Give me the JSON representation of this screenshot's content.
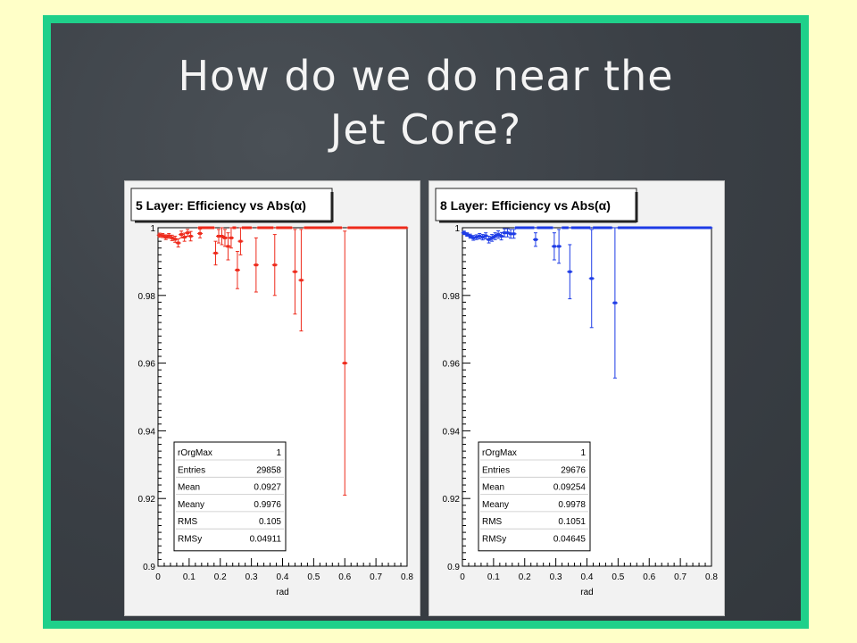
{
  "slide": {
    "title": "How do we do near the\nJet Core?"
  },
  "chart_data": [
    {
      "type": "scatter",
      "title": "5 Layer: Efficiency vs Abs(α)",
      "xlabel": "rad",
      "ylabel": "",
      "xlim": [
        0,
        0.8
      ],
      "ylim": [
        0.9,
        1.0
      ],
      "xticks": [
        "0",
        "0.1",
        "0.2",
        "0.3",
        "0.4",
        "0.5",
        "0.6",
        "0.7",
        "0.8"
      ],
      "yticks": [
        "0.9",
        "0.92",
        "0.94",
        "0.96",
        "0.98",
        "1"
      ],
      "color": "#ee2b1c",
      "series": [
        {
          "points": [
            {
              "x": 0.005,
              "y": 0.9978,
              "err": 0.0006
            },
            {
              "x": 0.015,
              "y": 0.9977,
              "err": 0.0006
            },
            {
              "x": 0.025,
              "y": 0.9972,
              "err": 0.0007
            },
            {
              "x": 0.035,
              "y": 0.9976,
              "err": 0.0007
            },
            {
              "x": 0.045,
              "y": 0.997,
              "err": 0.0008
            },
            {
              "x": 0.055,
              "y": 0.9966,
              "err": 0.0009
            },
            {
              "x": 0.065,
              "y": 0.9955,
              "err": 0.0012
            },
            {
              "x": 0.075,
              "y": 0.998,
              "err": 0.001
            },
            {
              "x": 0.085,
              "y": 0.9972,
              "err": 0.0012
            },
            {
              "x": 0.095,
              "y": 0.9985,
              "err": 0.001
            },
            {
              "x": 0.105,
              "y": 0.9975,
              "err": 0.0014
            },
            {
              "x": 0.135,
              "y": 0.9983,
              "err": 0.0013
            },
            {
              "x": 0.185,
              "y": 0.9925,
              "err": 0.0035
            },
            {
              "x": 0.195,
              "y": 0.9975,
              "err": 0.002
            },
            {
              "x": 0.205,
              "y": 0.9975,
              "err": 0.0025
            },
            {
              "x": 0.215,
              "y": 0.997,
              "err": 0.0025
            },
            {
              "x": 0.225,
              "y": 0.9945,
              "err": 0.004
            },
            {
              "x": 0.235,
              "y": 0.997,
              "err": 0.003
            },
            {
              "x": 0.255,
              "y": 0.9875,
              "err": 0.0055
            },
            {
              "x": 0.265,
              "y": 0.996,
              "err": 0.004
            },
            {
              "x": 0.315,
              "y": 0.989,
              "err": 0.008
            },
            {
              "x": 0.375,
              "y": 0.989,
              "err": 0.009
            },
            {
              "x": 0.44,
              "y": 0.987,
              "err": 0.0125
            },
            {
              "x": 0.46,
              "y": 0.9845,
              "err": 0.015
            },
            {
              "x": 0.6,
              "y": 0.96,
              "err": 0.039
            },
            {
              "x": 0.135,
              "y": 1.0,
              "err": 0
            },
            {
              "x": 0.145,
              "y": 1.0,
              "err": 0
            },
            {
              "x": 0.155,
              "y": 1.0,
              "err": 0
            },
            {
              "x": 0.165,
              "y": 1.0,
              "err": 0
            },
            {
              "x": 0.175,
              "y": 1.0,
              "err": 0
            },
            {
              "x": 0.245,
              "y": 1.0,
              "err": 0
            },
            {
              "x": 0.275,
              "y": 1.0,
              "err": 0
            },
            {
              "x": 0.285,
              "y": 1.0,
              "err": 0
            },
            {
              "x": 0.295,
              "y": 1.0,
              "err": 0
            },
            {
              "x": 0.325,
              "y": 1.0,
              "err": 0
            },
            {
              "x": 0.335,
              "y": 1.0,
              "err": 0
            },
            {
              "x": 0.345,
              "y": 1.0,
              "err": 0
            },
            {
              "x": 0.355,
              "y": 1.0,
              "err": 0
            },
            {
              "x": 0.365,
              "y": 1.0,
              "err": 0
            },
            {
              "x": 0.385,
              "y": 1.0,
              "err": 0
            },
            {
              "x": 0.395,
              "y": 1.0,
              "err": 0
            },
            {
              "x": 0.405,
              "y": 1.0,
              "err": 0
            },
            {
              "x": 0.415,
              "y": 1.0,
              "err": 0
            },
            {
              "x": 0.425,
              "y": 1.0,
              "err": 0
            },
            {
              "x": 0.475,
              "y": 1.0,
              "err": 0
            },
            {
              "x": 0.485,
              "y": 1.0,
              "err": 0
            },
            {
              "x": 0.495,
              "y": 1.0,
              "err": 0
            },
            {
              "x": 0.505,
              "y": 1.0,
              "err": 0
            },
            {
              "x": 0.515,
              "y": 1.0,
              "err": 0
            },
            {
              "x": 0.525,
              "y": 1.0,
              "err": 0
            },
            {
              "x": 0.535,
              "y": 1.0,
              "err": 0
            },
            {
              "x": 0.545,
              "y": 1.0,
              "err": 0
            },
            {
              "x": 0.555,
              "y": 1.0,
              "err": 0
            },
            {
              "x": 0.565,
              "y": 1.0,
              "err": 0
            },
            {
              "x": 0.575,
              "y": 1.0,
              "err": 0
            },
            {
              "x": 0.585,
              "y": 1.0,
              "err": 0
            },
            {
              "x": 0.615,
              "y": 1.0,
              "err": 0
            },
            {
              "x": 0.625,
              "y": 1.0,
              "err": 0
            },
            {
              "x": 0.635,
              "y": 1.0,
              "err": 0
            },
            {
              "x": 0.645,
              "y": 1.0,
              "err": 0
            },
            {
              "x": 0.655,
              "y": 1.0,
              "err": 0
            },
            {
              "x": 0.665,
              "y": 1.0,
              "err": 0
            },
            {
              "x": 0.675,
              "y": 1.0,
              "err": 0
            },
            {
              "x": 0.685,
              "y": 1.0,
              "err": 0
            },
            {
              "x": 0.695,
              "y": 1.0,
              "err": 0
            },
            {
              "x": 0.705,
              "y": 1.0,
              "err": 0
            },
            {
              "x": 0.715,
              "y": 1.0,
              "err": 0
            },
            {
              "x": 0.725,
              "y": 1.0,
              "err": 0
            },
            {
              "x": 0.735,
              "y": 1.0,
              "err": 0
            },
            {
              "x": 0.745,
              "y": 1.0,
              "err": 0
            },
            {
              "x": 0.755,
              "y": 1.0,
              "err": 0
            },
            {
              "x": 0.765,
              "y": 1.0,
              "err": 0
            },
            {
              "x": 0.775,
              "y": 1.0,
              "err": 0
            },
            {
              "x": 0.785,
              "y": 1.0,
              "err": 0
            },
            {
              "x": 0.795,
              "y": 1.0,
              "err": 0
            }
          ]
        }
      ],
      "stats": [
        {
          "label": "rOrgMax",
          "value": "1"
        },
        {
          "label": "Entries",
          "value": "29858"
        },
        {
          "label": "Mean",
          "value": "0.0927"
        },
        {
          "label": "Meany",
          "value": "0.9976"
        },
        {
          "label": "RMS",
          "value": "0.105"
        },
        {
          "label": "RMSy",
          "value": "0.04911"
        }
      ]
    },
    {
      "type": "scatter",
      "title": "8 Layer: Efficiency vs Abs(α)",
      "xlabel": "rad",
      "ylabel": "",
      "xlim": [
        0,
        0.8
      ],
      "ylim": [
        0.9,
        1.0
      ],
      "xticks": [
        "0",
        "0.1",
        "0.2",
        "0.3",
        "0.4",
        "0.5",
        "0.6",
        "0.7",
        "0.8"
      ],
      "yticks": [
        "0.9",
        "0.92",
        "0.94",
        "0.96",
        "0.98",
        "1"
      ],
      "color": "#1e3ce6",
      "series": [
        {
          "points": [
            {
              "x": 0.005,
              "y": 0.9985,
              "err": 0.0005
            },
            {
              "x": 0.015,
              "y": 0.998,
              "err": 0.0005
            },
            {
              "x": 0.025,
              "y": 0.9975,
              "err": 0.0006
            },
            {
              "x": 0.035,
              "y": 0.997,
              "err": 0.0007
            },
            {
              "x": 0.045,
              "y": 0.9972,
              "err": 0.0007
            },
            {
              "x": 0.055,
              "y": 0.9975,
              "err": 0.0008
            },
            {
              "x": 0.065,
              "y": 0.9972,
              "err": 0.0008
            },
            {
              "x": 0.075,
              "y": 0.9976,
              "err": 0.0009
            },
            {
              "x": 0.085,
              "y": 0.9965,
              "err": 0.001
            },
            {
              "x": 0.095,
              "y": 0.997,
              "err": 0.001
            },
            {
              "x": 0.105,
              "y": 0.9975,
              "err": 0.001
            },
            {
              "x": 0.115,
              "y": 0.998,
              "err": 0.0011
            },
            {
              "x": 0.125,
              "y": 0.9975,
              "err": 0.0011
            },
            {
              "x": 0.135,
              "y": 0.9985,
              "err": 0.0012
            },
            {
              "x": 0.145,
              "y": 0.9985,
              "err": 0.0012
            },
            {
              "x": 0.155,
              "y": 0.9982,
              "err": 0.0013
            },
            {
              "x": 0.165,
              "y": 0.9982,
              "err": 0.0013
            },
            {
              "x": 0.235,
              "y": 0.9965,
              "err": 0.002
            },
            {
              "x": 0.295,
              "y": 0.9945,
              "err": 0.004
            },
            {
              "x": 0.31,
              "y": 0.9945,
              "err": 0.005
            },
            {
              "x": 0.345,
              "y": 0.987,
              "err": 0.008
            },
            {
              "x": 0.415,
              "y": 0.985,
              "err": 0.0145
            },
            {
              "x": 0.49,
              "y": 0.9778,
              "err": 0.0222
            },
            {
              "x": 0.175,
              "y": 1.0,
              "err": 0
            },
            {
              "x": 0.185,
              "y": 1.0,
              "err": 0
            },
            {
              "x": 0.195,
              "y": 1.0,
              "err": 0
            },
            {
              "x": 0.205,
              "y": 1.0,
              "err": 0
            },
            {
              "x": 0.215,
              "y": 1.0,
              "err": 0
            },
            {
              "x": 0.225,
              "y": 1.0,
              "err": 0
            },
            {
              "x": 0.245,
              "y": 1.0,
              "err": 0
            },
            {
              "x": 0.255,
              "y": 1.0,
              "err": 0
            },
            {
              "x": 0.265,
              "y": 1.0,
              "err": 0
            },
            {
              "x": 0.275,
              "y": 1.0,
              "err": 0
            },
            {
              "x": 0.285,
              "y": 1.0,
              "err": 0
            },
            {
              "x": 0.325,
              "y": 1.0,
              "err": 0
            },
            {
              "x": 0.335,
              "y": 1.0,
              "err": 0
            },
            {
              "x": 0.355,
              "y": 1.0,
              "err": 0
            },
            {
              "x": 0.365,
              "y": 1.0,
              "err": 0
            },
            {
              "x": 0.375,
              "y": 1.0,
              "err": 0
            },
            {
              "x": 0.385,
              "y": 1.0,
              "err": 0
            },
            {
              "x": 0.395,
              "y": 1.0,
              "err": 0
            },
            {
              "x": 0.405,
              "y": 1.0,
              "err": 0
            },
            {
              "x": 0.425,
              "y": 1.0,
              "err": 0
            },
            {
              "x": 0.435,
              "y": 1.0,
              "err": 0
            },
            {
              "x": 0.445,
              "y": 1.0,
              "err": 0
            },
            {
              "x": 0.455,
              "y": 1.0,
              "err": 0
            },
            {
              "x": 0.465,
              "y": 1.0,
              "err": 0
            },
            {
              "x": 0.475,
              "y": 1.0,
              "err": 0
            },
            {
              "x": 0.505,
              "y": 1.0,
              "err": 0
            },
            {
              "x": 0.515,
              "y": 1.0,
              "err": 0
            },
            {
              "x": 0.525,
              "y": 1.0,
              "err": 0
            },
            {
              "x": 0.535,
              "y": 1.0,
              "err": 0
            },
            {
              "x": 0.545,
              "y": 1.0,
              "err": 0
            },
            {
              "x": 0.555,
              "y": 1.0,
              "err": 0
            },
            {
              "x": 0.565,
              "y": 1.0,
              "err": 0
            },
            {
              "x": 0.575,
              "y": 1.0,
              "err": 0
            },
            {
              "x": 0.585,
              "y": 1.0,
              "err": 0
            },
            {
              "x": 0.595,
              "y": 1.0,
              "err": 0
            },
            {
              "x": 0.605,
              "y": 1.0,
              "err": 0
            },
            {
              "x": 0.615,
              "y": 1.0,
              "err": 0
            },
            {
              "x": 0.625,
              "y": 1.0,
              "err": 0
            },
            {
              "x": 0.635,
              "y": 1.0,
              "err": 0
            },
            {
              "x": 0.645,
              "y": 1.0,
              "err": 0
            },
            {
              "x": 0.655,
              "y": 1.0,
              "err": 0
            },
            {
              "x": 0.665,
              "y": 1.0,
              "err": 0
            },
            {
              "x": 0.675,
              "y": 1.0,
              "err": 0
            },
            {
              "x": 0.685,
              "y": 1.0,
              "err": 0
            },
            {
              "x": 0.695,
              "y": 1.0,
              "err": 0
            },
            {
              "x": 0.705,
              "y": 1.0,
              "err": 0
            },
            {
              "x": 0.715,
              "y": 1.0,
              "err": 0
            },
            {
              "x": 0.725,
              "y": 1.0,
              "err": 0
            },
            {
              "x": 0.735,
              "y": 1.0,
              "err": 0
            },
            {
              "x": 0.745,
              "y": 1.0,
              "err": 0
            },
            {
              "x": 0.755,
              "y": 1.0,
              "err": 0
            },
            {
              "x": 0.765,
              "y": 1.0,
              "err": 0
            },
            {
              "x": 0.775,
              "y": 1.0,
              "err": 0
            },
            {
              "x": 0.785,
              "y": 1.0,
              "err": 0
            },
            {
              "x": 0.795,
              "y": 1.0,
              "err": 0
            }
          ]
        }
      ],
      "stats": [
        {
          "label": "rOrgMax",
          "value": "1"
        },
        {
          "label": "Entries",
          "value": "29676"
        },
        {
          "label": "Mean",
          "value": "0.09254"
        },
        {
          "label": "Meany",
          "value": "0.9978"
        },
        {
          "label": "RMS",
          "value": "0.1051"
        },
        {
          "label": "RMSy",
          "value": "0.04645"
        }
      ]
    }
  ]
}
